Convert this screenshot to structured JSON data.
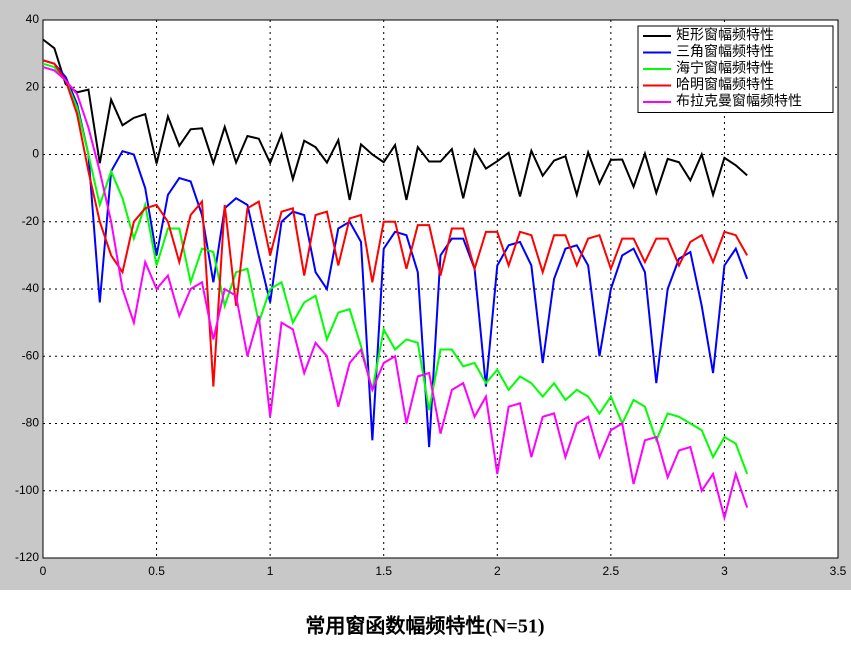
{
  "chart_data": {
    "type": "line",
    "title": "常用窗函数幅频特性(N=51)",
    "x": [
      0,
      0.05,
      0.1,
      0.15,
      0.2,
      0.25,
      0.3,
      0.35,
      0.4,
      0.45,
      0.5,
      0.55,
      0.6,
      0.65,
      0.7,
      0.75,
      0.8,
      0.85,
      0.9,
      0.95,
      1.0,
      1.05,
      1.1,
      1.15,
      1.2,
      1.25,
      1.3,
      1.35,
      1.4,
      1.45,
      1.5,
      1.55,
      1.6,
      1.65,
      1.7,
      1.75,
      1.8,
      1.85,
      1.9,
      1.95,
      2.0,
      2.05,
      2.1,
      2.15,
      2.2,
      2.25,
      2.3,
      2.35,
      2.4,
      2.45,
      2.5,
      2.55,
      2.6,
      2.65,
      2.7,
      2.75,
      2.8,
      2.85,
      2.9,
      2.95,
      3.0,
      3.05,
      3.1
    ],
    "series": [
      {
        "name": "矩形窗幅频特性",
        "color": "#000000",
        "values": [
          34.2,
          31.6,
          20.9,
          18.5,
          19.3,
          -2.6,
          16.3,
          8.7,
          10.9,
          12.0,
          -2.7,
          11.3,
          2.6,
          7.5,
          7.8,
          -2.6,
          8.2,
          -2.4,
          5.5,
          4.7,
          -2.5,
          6.0,
          -7.3,
          4.1,
          2.2,
          -2.4,
          4.3,
          -13.5,
          3.0,
          0,
          -2.3,
          2.8,
          -13.5,
          2.2,
          -2.1,
          -2.1,
          1.6,
          -13,
          1.4,
          -4.2,
          -2.0,
          0.5,
          -12.5,
          1.1,
          -6.3,
          -1.8,
          -0.5,
          -12.0,
          0.6,
          -8.6,
          -1.6,
          -1.5,
          -9.6,
          0.25,
          -11.4,
          -1.3,
          -2.3,
          -7.7,
          0,
          -12,
          -1.0,
          -3.2,
          -6.2
        ]
      },
      {
        "name": "三角窗幅频特性",
        "color": "#0000ff",
        "values": [
          28,
          27,
          23,
          15,
          0,
          -44,
          -5,
          1,
          0,
          -10,
          -30,
          -12,
          -7,
          -8,
          -18,
          -38,
          -16,
          -13,
          -15,
          -30,
          -44,
          -20,
          -17,
          -18,
          -35,
          -40,
          -22,
          -20,
          -26,
          -85,
          -28,
          -23,
          -24,
          -35,
          -87,
          -30,
          -25,
          -25,
          -34,
          -69,
          -33,
          -27,
          -26,
          -33,
          -62,
          -37,
          -28,
          -27,
          -33,
          -60,
          -40,
          -30,
          -28,
          -35,
          -68,
          -40,
          -31,
          -29,
          -45,
          -65,
          -33,
          -28,
          -37
        ]
      },
      {
        "name": "海宁窗幅频特性",
        "color": "#00ff00",
        "values": [
          27,
          26,
          22,
          14,
          0,
          -15,
          -5,
          -13,
          -25,
          -15,
          -33,
          -22,
          -22,
          -38,
          -28,
          -29,
          -45,
          -35,
          -34,
          -50,
          -40,
          -38,
          -50,
          -44,
          -42,
          -55,
          -47,
          -46,
          -57,
          -70,
          -52,
          -58,
          -55,
          -56,
          -76,
          -58,
          -58,
          -63,
          -62,
          -68,
          -64,
          -70,
          -66,
          -68,
          -72,
          -68,
          -73,
          -70,
          -72,
          -77,
          -72,
          -80,
          -73,
          -75,
          -85,
          -77,
          -78,
          -80,
          -82,
          -90,
          -84,
          -86,
          -95
        ]
      },
      {
        "name": "哈明窗幅频特性",
        "color": "#ff0000",
        "values": [
          28,
          27,
          22,
          12,
          -5,
          -20,
          -30,
          -35,
          -20,
          -16,
          -15,
          -20,
          -32,
          -18,
          -14,
          -69,
          -15,
          -45,
          -16,
          -14,
          -30,
          -17,
          -16,
          -36,
          -18,
          -17,
          -33,
          -19,
          -18,
          -38,
          -20,
          -20,
          -34,
          -21,
          -21,
          -36,
          -22,
          -22,
          -34,
          -23,
          -23,
          -33,
          -23,
          -24,
          -35,
          -24,
          -24,
          -33,
          -25,
          -24,
          -34,
          -25,
          -25,
          -32,
          -25,
          -25,
          -33,
          -26,
          -24,
          -32,
          -23,
          -24,
          -30
        ]
      },
      {
        "name": "布拉克曼窗幅频特性",
        "color": "#ff00ff",
        "values": [
          26,
          25,
          22,
          18,
          8,
          -5,
          -20,
          -40,
          -50,
          -32,
          -40,
          -36,
          -48,
          -40,
          -38,
          -55,
          -40,
          -42,
          -60,
          -48,
          -78,
          -50,
          -52,
          -65,
          -56,
          -60,
          -75,
          -62,
          -58,
          -70,
          -62,
          -60,
          -80,
          -66,
          -65,
          -83,
          -70,
          -68,
          -78,
          -72,
          -95,
          -75,
          -74,
          -90,
          -78,
          -77,
          -90,
          -80,
          -78,
          -90,
          -82,
          -80,
          -98,
          -85,
          -84,
          -96,
          -88,
          -87,
          -100,
          -95,
          -108,
          -95,
          -105
        ]
      }
    ],
    "xlim": [
      0,
      3.5
    ],
    "xticks": [
      0,
      0.5,
      1,
      1.5,
      2,
      2.5,
      3,
      3.5
    ],
    "ylim": [
      -120,
      40
    ],
    "yticks": [
      -120,
      -100,
      -80,
      -60,
      -40,
      -20,
      0,
      20,
      40
    ],
    "grid": true,
    "legend": "upper right"
  }
}
